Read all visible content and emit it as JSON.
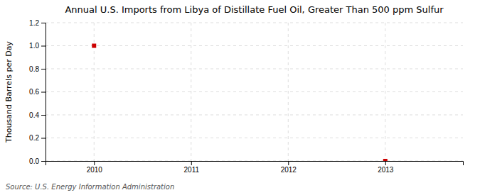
{
  "chart_data": {
    "type": "scatter",
    "title": "Annual U.S. Imports from Libya of Distillate Fuel Oil, Greater Than 500 ppm Sulfur",
    "ylabel": "Thousand Barrels per Day",
    "source": "Source: U.S. Energy Information Administration",
    "x": [
      2010,
      2013
    ],
    "values": [
      1.0,
      0.0
    ],
    "color": "#cc0000",
    "marker": "square",
    "xlim": [
      2009.5,
      2013.8
    ],
    "ylim": [
      0.0,
      1.2
    ],
    "xticks": [
      2010,
      2011,
      2012,
      2013
    ],
    "yticks": [
      {
        "value": 0.0,
        "label": "0.0"
      },
      0.2,
      0.4,
      0.6,
      0.8,
      {
        "value": 1.0,
        "label": "1.0"
      },
      1.2
    ],
    "grid": true
  }
}
